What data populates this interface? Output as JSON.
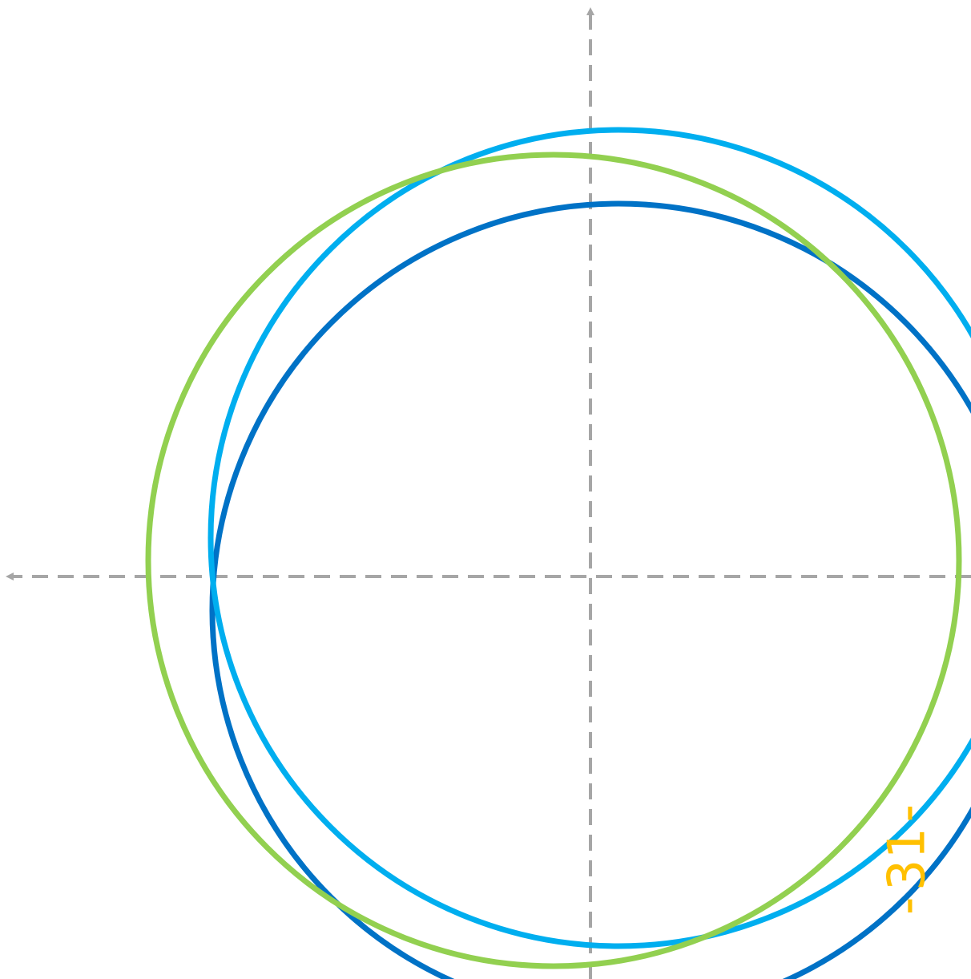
{
  "colors": {
    "background": "#ffffff",
    "axis": "#a6a6a6",
    "circle_light_blue": "#00aeef",
    "circle_dark_blue": "#0072c6",
    "circle_green": "#92d050",
    "label": "#ffc000"
  },
  "diagram": {
    "elements": [
      "vertical-axis",
      "horizontal-axis",
      "circle-green",
      "circle-light-blue",
      "circle-dark-blue"
    ],
    "label": {
      "text": "-31-",
      "orientation": "rotated"
    }
  }
}
